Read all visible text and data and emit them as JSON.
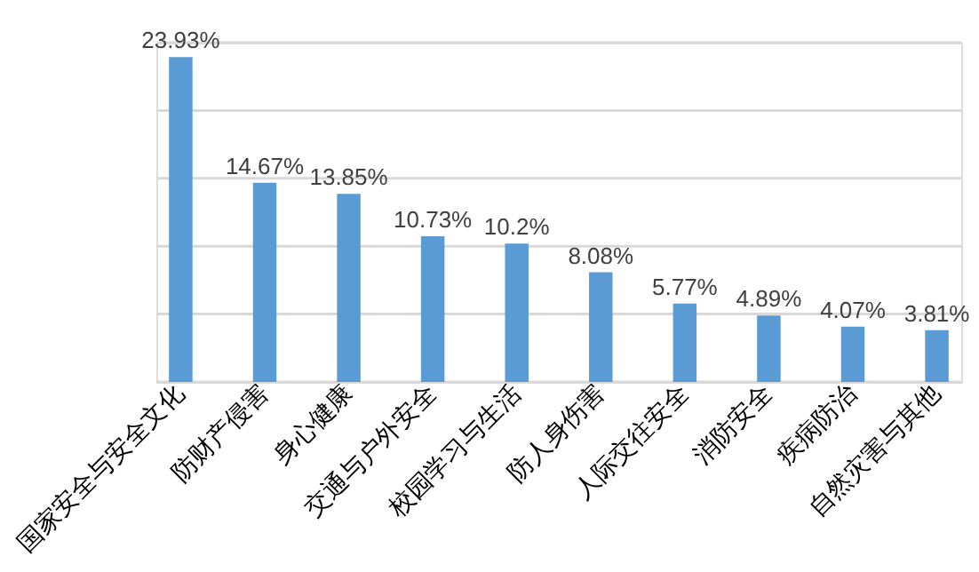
{
  "chart_data": {
    "type": "bar",
    "categories": [
      "国家安全与安全文化",
      "防财产侵害",
      "身心健康",
      "交通与户外安全",
      "校园学习与生活",
      "防人身伤害",
      "人际交往安全",
      "消防安全",
      "疾病防治",
      "自然灾害与其他"
    ],
    "values": [
      23.93,
      14.67,
      13.85,
      10.73,
      10.2,
      8.08,
      5.77,
      4.89,
      4.07,
      3.81
    ],
    "value_labels": [
      "23.93%",
      "14.67%",
      "13.85%",
      "10.73%",
      "10.2%",
      "8.08%",
      "5.77%",
      "4.89%",
      "4.07%",
      "3.81%"
    ],
    "color": "#5b9bd5",
    "ylim": [
      0,
      25
    ],
    "yticks": [
      0,
      5,
      10,
      15,
      20,
      25
    ],
    "grid": "y",
    "tick_labels": "x"
  }
}
